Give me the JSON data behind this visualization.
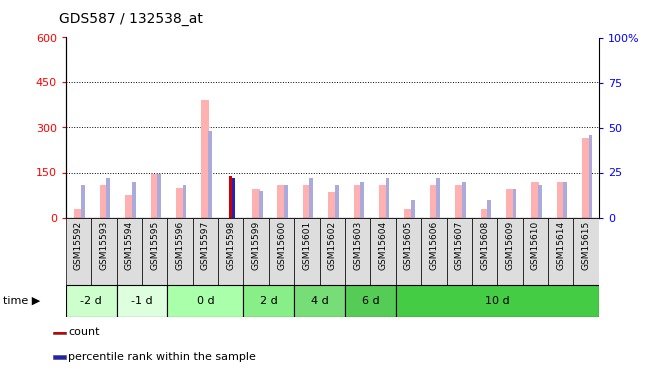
{
  "title": "GDS587 / 132538_at",
  "samples": [
    "GSM15592",
    "GSM15593",
    "GSM15594",
    "GSM15595",
    "GSM15596",
    "GSM15597",
    "GSM15598",
    "GSM15599",
    "GSM15600",
    "GSM15601",
    "GSM15602",
    "GSM15603",
    "GSM15604",
    "GSM15605",
    "GSM15606",
    "GSM15607",
    "GSM15608",
    "GSM15609",
    "GSM15610",
    "GSM15614",
    "GSM15615"
  ],
  "values_absent": [
    30,
    110,
    75,
    145,
    100,
    390,
    0,
    95,
    110,
    110,
    85,
    110,
    110,
    30,
    110,
    110,
    30,
    95,
    120,
    120,
    265
  ],
  "rank_absent": [
    18,
    22,
    20,
    24,
    18,
    48,
    0,
    15,
    18,
    22,
    18,
    20,
    22,
    10,
    22,
    20,
    10,
    16,
    18,
    20,
    46
  ],
  "count_values": [
    0,
    0,
    0,
    0,
    0,
    0,
    140,
    0,
    0,
    0,
    0,
    0,
    0,
    0,
    0,
    0,
    0,
    0,
    0,
    0,
    0
  ],
  "percentile_values": [
    0,
    0,
    0,
    0,
    0,
    0,
    22,
    0,
    0,
    0,
    0,
    0,
    0,
    0,
    0,
    0,
    0,
    0,
    0,
    0,
    0
  ],
  "time_groups": [
    {
      "label": "-2 d",
      "start": 0,
      "end": 2,
      "color": "#ccffcc"
    },
    {
      "label": "-1 d",
      "start": 2,
      "end": 4,
      "color": "#ddffdd"
    },
    {
      "label": "0 d",
      "start": 4,
      "end": 7,
      "color": "#aaffaa"
    },
    {
      "label": "2 d",
      "start": 7,
      "end": 9,
      "color": "#88ee88"
    },
    {
      "label": "4 d",
      "start": 9,
      "end": 11,
      "color": "#77dd77"
    },
    {
      "label": "6 d",
      "start": 11,
      "end": 13,
      "color": "#55cc55"
    },
    {
      "label": "10 d",
      "start": 13,
      "end": 21,
      "color": "#44cc44"
    }
  ],
  "ylim_left": [
    0,
    600
  ],
  "ylim_right": [
    0,
    100
  ],
  "yticks_left": [
    0,
    150,
    300,
    450,
    600
  ],
  "yticks_right": [
    0,
    25,
    50,
    75,
    100
  ],
  "color_count": "#cc0000",
  "color_percentile": "#2222bb",
  "color_value_absent": "#ffb0b0",
  "color_rank_absent": "#aaaadd",
  "figsize": [
    6.58,
    3.75
  ],
  "dpi": 100
}
